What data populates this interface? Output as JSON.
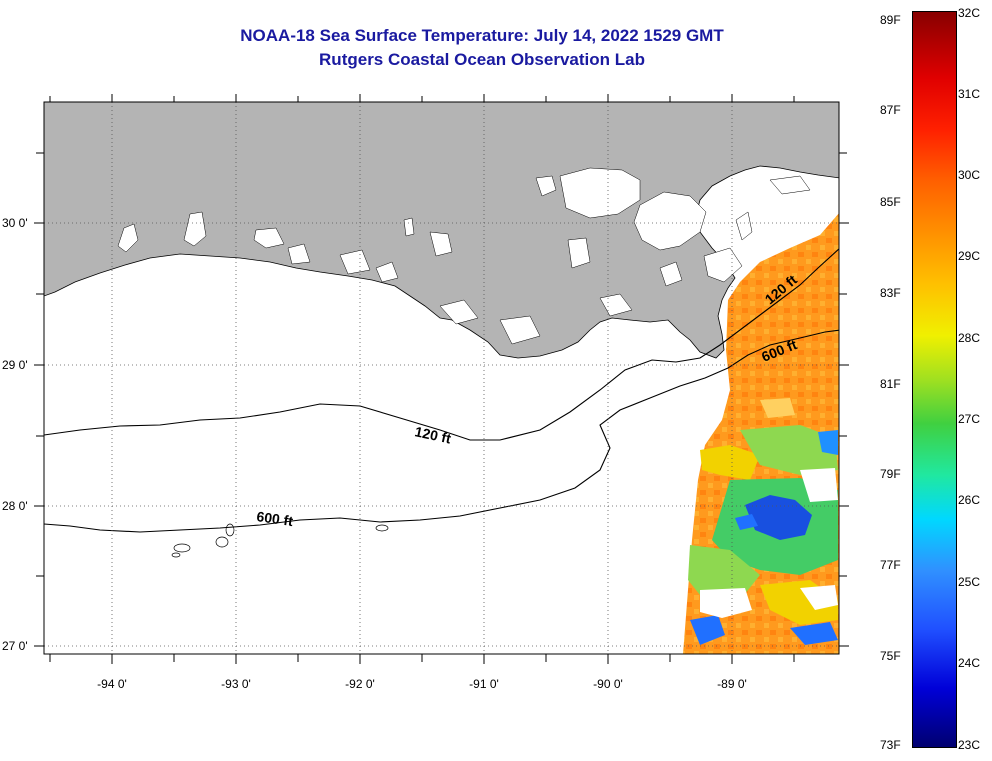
{
  "header": {
    "title_line_1": "NOAA-18 Sea Surface Temperature:  July 14, 2022 1529 GMT",
    "title_line_2": "Rutgers Coastal Ocean Observation Lab"
  },
  "map": {
    "latitude_labels": [
      "30 0'",
      "29 0'",
      "28 0'",
      "27 0'"
    ],
    "longitude_labels": [
      "-94 0'",
      "-93 0'",
      "-92 0'",
      "-91 0'",
      "-90 0'",
      "-89 0'"
    ],
    "isobath_labels": [
      {
        "id": "120-west",
        "text": "120 ft"
      },
      {
        "id": "600-west",
        "text": "600 ft"
      },
      {
        "id": "120-east",
        "text": "120 ft"
      },
      {
        "id": "600-east",
        "text": "600 ft"
      }
    ],
    "colors": {
      "land": "#b4b4b4",
      "water_no_data": "#ffffff",
      "sst_orange": "#ff9a1e",
      "sst_yellow": "#f2d200",
      "sst_green": "#44cc66",
      "sst_blue": "#1850e0"
    }
  },
  "colorbar": {
    "fahrenheit_labels": [
      "89F",
      "87F",
      "85F",
      "83F",
      "81F",
      "79F",
      "77F",
      "75F",
      "73F"
    ],
    "celsius_labels": [
      "32C",
      "31C",
      "30C",
      "29C",
      "28C",
      "27C",
      "26C",
      "25C",
      "24C",
      "23C"
    ]
  }
}
